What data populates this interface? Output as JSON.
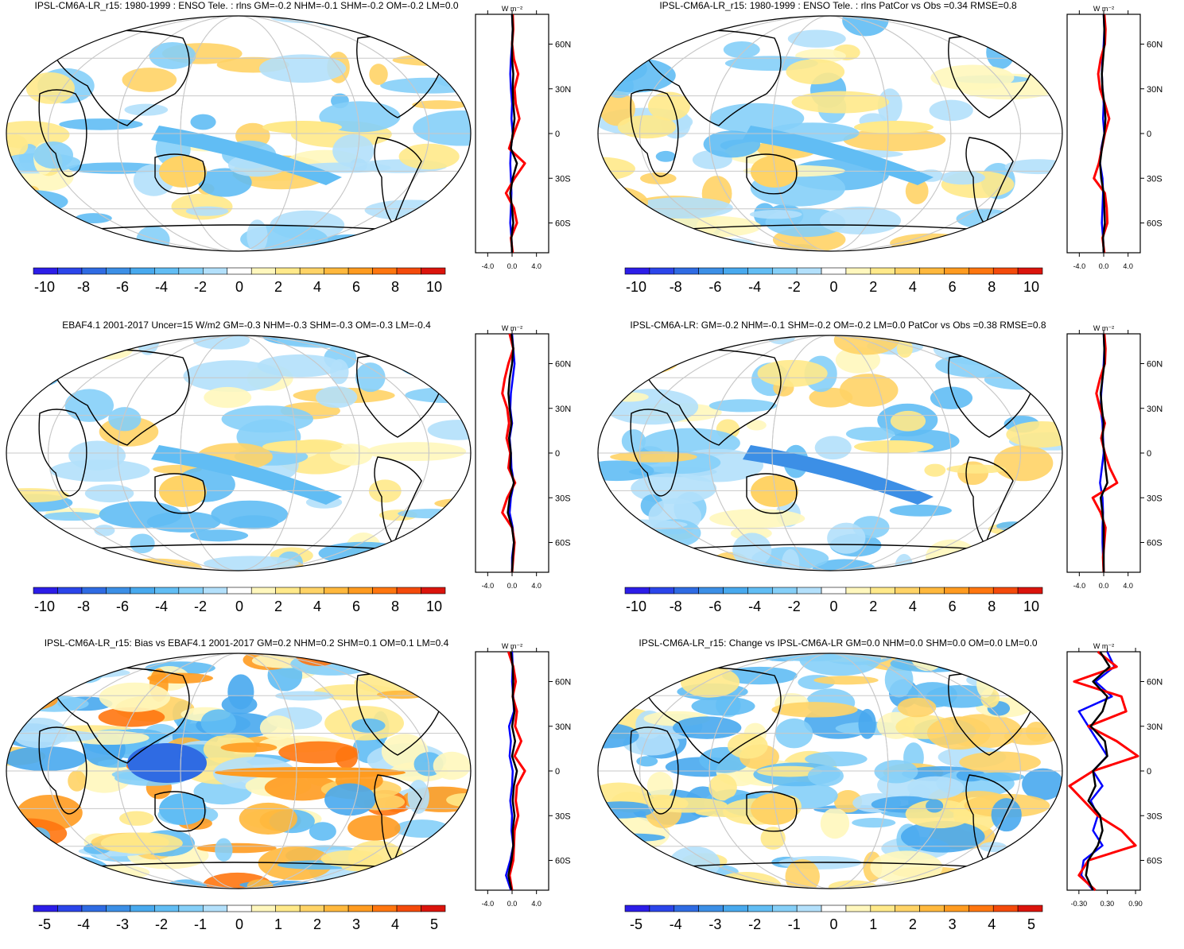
{
  "colors": {
    "scale": [
      "#2c1de8",
      "#2b45ea",
      "#2f6be3",
      "#3c8fe6",
      "#48a9ee",
      "#61bdf4",
      "#85cff8",
      "#b3e0fb",
      "#ffffff",
      "#fff7bd",
      "#ffe98a",
      "#ffd366",
      "#ffb83d",
      "#ff9b20",
      "#ff760f",
      "#f44a0b",
      "#db140c"
    ],
    "land": "#000000",
    "grid": "#c8c8c8",
    "obs_line": "#0000ff",
    "model_line": "#ff0000",
    "mean_line": "#000000"
  },
  "chart_data": [
    {
      "id": "p1",
      "type": "map",
      "title": "IPSL-CM6A-LR_r15: 1980-1999 : ENSO Tele. : rlns GM=-0.2 NHM=-0.1 SHM=-0.2 OM=-0.2 LM=0.0",
      "colorbar_labels": [
        "-10",
        "-8",
        "-6",
        "-4",
        "-2",
        "0",
        "2",
        "4",
        "6",
        "8",
        "10"
      ],
      "zonal_units": "W m⁻²",
      "zonal_xticks": [
        "-4.0",
        "0.0",
        "4.0"
      ],
      "zonal_xlim": [
        -6,
        6
      ],
      "zonal_lat_labels": [
        "60N",
        "30N",
        "0",
        "30S",
        "60S"
      ],
      "zonal_series": {
        "lat": [
          80,
          70,
          60,
          50,
          40,
          30,
          20,
          10,
          0,
          -10,
          -20,
          -30,
          -40,
          -50,
          -60,
          -70,
          -80
        ],
        "obs": [
          0.0,
          0.1,
          0.0,
          -0.2,
          -0.3,
          -0.2,
          0.0,
          -0.1,
          0.1,
          -0.2,
          -0.3,
          -0.2,
          -0.1,
          -0.2,
          -0.3,
          -0.1,
          0.0
        ],
        "model": [
          0.1,
          0.2,
          0.0,
          0.3,
          1.0,
          0.4,
          0.6,
          1.2,
          0.3,
          -0.5,
          2.1,
          0.4,
          -1.0,
          0.3,
          0.8,
          -0.2,
          0.1
        ],
        "mean": [
          0.0,
          0.1,
          0.0,
          0.0,
          0.2,
          0.1,
          0.2,
          0.4,
          0.1,
          -0.2,
          0.8,
          0.1,
          -0.3,
          0.0,
          0.2,
          -0.1,
          0.0
        ]
      }
    },
    {
      "id": "p2",
      "type": "map",
      "title": "IPSL-CM6A-LR_r15: 1980-1999 : ENSO Tele. : rlns PatCor vs Obs =0.34 RMSE=0.8",
      "colorbar_labels": [
        "-10",
        "-8",
        "-6",
        "-4",
        "-2",
        "0",
        "2",
        "4",
        "6",
        "8",
        "10"
      ],
      "zonal_units": "W m⁻²",
      "zonal_xticks": [
        "-4.0",
        "0.0",
        "4.0"
      ],
      "zonal_xlim": [
        -6,
        6
      ],
      "zonal_lat_labels": [
        "60N",
        "30N",
        "0",
        "30S",
        "60S"
      ],
      "zonal_series": {
        "lat": [
          80,
          70,
          60,
          50,
          40,
          30,
          20,
          10,
          0,
          -10,
          -20,
          -30,
          -40,
          -50,
          -60,
          -70,
          -80
        ],
        "obs": [
          0.0,
          0.1,
          0.0,
          -0.2,
          -0.3,
          -0.2,
          0.0,
          -0.1,
          0.1,
          -0.4,
          -0.6,
          -0.2,
          -0.1,
          -0.2,
          -0.3,
          -0.1,
          0.0
        ],
        "model": [
          0.1,
          0.3,
          0.2,
          -0.5,
          -0.9,
          -0.6,
          0.2,
          0.9,
          0.2,
          -0.3,
          -0.8,
          -1.6,
          0.2,
          0.5,
          0.6,
          -0.2,
          0.1
        ],
        "mean": [
          0.0,
          0.1,
          0.1,
          -0.1,
          -0.3,
          -0.2,
          0.1,
          0.3,
          0.1,
          -0.3,
          -0.6,
          -0.4,
          0.0,
          0.1,
          0.2,
          -0.1,
          0.0
        ]
      }
    },
    {
      "id": "p3",
      "type": "map",
      "title": "EBAF4.1 2001-2017 Uncer=15 W/m2 GM=-0.3 NHM=-0.3 SHM=-0.3 OM=-0.3 LM=-0.4",
      "colorbar_labels": [
        "-10",
        "-8",
        "-6",
        "-4",
        "-2",
        "0",
        "2",
        "4",
        "6",
        "8",
        "10"
      ],
      "zonal_units": "W m⁻²",
      "zonal_xticks": [
        "-4.0",
        "0.0",
        "4.0"
      ],
      "zonal_xlim": [
        -6,
        6
      ],
      "zonal_lat_labels": [
        "60N",
        "30N",
        "0",
        "30S",
        "60S"
      ],
      "zonal_series": {
        "lat": [
          80,
          70,
          60,
          50,
          40,
          30,
          20,
          10,
          0,
          -10,
          -20,
          -30,
          -40,
          -50,
          -60,
          -70,
          -80
        ],
        "obs": [
          0.0,
          0.2,
          0.4,
          0.1,
          -0.2,
          -0.3,
          0.0,
          -0.4,
          -0.2,
          -0.1,
          0.3,
          -0.2,
          -0.4,
          0.1,
          0.3,
          0.0,
          0.0
        ],
        "model": [
          -0.4,
          0.2,
          -0.6,
          -1.2,
          -1.6,
          -0.8,
          -0.5,
          -0.9,
          -0.3,
          -0.6,
          0.5,
          -0.8,
          -1.6,
          0.0,
          0.4,
          0.2,
          0.0
        ],
        "mean": [
          -0.1,
          0.2,
          0.0,
          -0.4,
          -0.6,
          -0.4,
          -0.1,
          -0.5,
          -0.2,
          -0.3,
          0.3,
          -0.4,
          -0.7,
          0.0,
          0.3,
          0.1,
          0.0
        ]
      }
    },
    {
      "id": "p4",
      "type": "map",
      "title": "IPSL-CM6A-LR: GM=-0.2 NHM=-0.1 SHM=-0.2 OM=-0.2 LM=0.0 PatCor vs Obs =0.38 RMSE=0.8",
      "colorbar_labels": [
        "-10",
        "-8",
        "-6",
        "-4",
        "-2",
        "0",
        "2",
        "4",
        "6",
        "8",
        "10"
      ],
      "zonal_units": "W m⁻²",
      "zonal_xticks": [
        "-4.0",
        "0.0",
        "4.0"
      ],
      "zonal_xlim": [
        -6,
        6
      ],
      "zonal_lat_labels": [
        "60N",
        "30N",
        "0",
        "30S",
        "60S"
      ],
      "zonal_series": {
        "lat": [
          80,
          70,
          60,
          50,
          40,
          30,
          20,
          10,
          0,
          -10,
          -20,
          -30,
          -40,
          -50,
          -60,
          -70,
          -80
        ],
        "obs": [
          0.0,
          0.1,
          0.0,
          -0.2,
          -0.4,
          -0.5,
          -0.2,
          -0.1,
          0.0,
          -0.3,
          -0.6,
          -0.2,
          -0.1,
          -0.2,
          -0.2,
          -0.1,
          0.0
        ],
        "model": [
          0.1,
          0.3,
          0.2,
          -0.6,
          -1.2,
          -0.6,
          0.2,
          -0.4,
          0.2,
          1.0,
          2.2,
          -1.8,
          -0.5,
          0.3,
          0.1,
          -0.1,
          0.0
        ],
        "mean": [
          0.0,
          0.1,
          0.1,
          -0.2,
          -0.5,
          -0.3,
          0.0,
          -0.2,
          0.1,
          0.3,
          0.6,
          -0.5,
          -0.2,
          0.0,
          0.0,
          0.0,
          0.0
        ]
      }
    },
    {
      "id": "p5",
      "type": "map",
      "title": "IPSL-CM6A-LR_r15: Bias vs EBAF4.1 2001-2017 GM=0.2 NHM=0.2 SHM=0.1 OM=0.1 LM=0.4",
      "colorbar_labels": [
        "-5",
        "-4",
        "-3",
        "-2",
        "-1",
        "0",
        "1",
        "2",
        "3",
        "4",
        "5"
      ],
      "zonal_units": "W m⁻²",
      "zonal_xticks": [
        "-4.0",
        "0.0",
        "4.0"
      ],
      "zonal_xlim": [
        -6,
        6
      ],
      "zonal_lat_labels": [
        "60N",
        "30N",
        "0",
        "30S",
        "60S"
      ],
      "zonal_series": {
        "lat": [
          80,
          70,
          60,
          50,
          40,
          30,
          20,
          10,
          0,
          -10,
          -20,
          -30,
          -40,
          -50,
          -60,
          -70,
          -80
        ],
        "obs": [
          0.0,
          0.1,
          0.0,
          0.2,
          0.3,
          -0.5,
          -0.2,
          -0.4,
          0.1,
          0.0,
          -0.3,
          0.0,
          -0.1,
          0.2,
          -0.3,
          -1.0,
          -0.2
        ],
        "model": [
          -0.6,
          0.2,
          0.6,
          0.1,
          0.8,
          0.5,
          1.5,
          0.4,
          2.1,
          0.8,
          0.6,
          1.0,
          0.4,
          0.3,
          0.2,
          -0.4,
          0.0
        ],
        "mean": [
          -0.2,
          0.1,
          0.2,
          0.1,
          0.4,
          0.0,
          0.5,
          0.0,
          0.8,
          0.3,
          0.1,
          0.4,
          0.1,
          0.2,
          -0.1,
          -0.6,
          -0.1
        ]
      }
    },
    {
      "id": "p6",
      "type": "map",
      "title": "IPSL-CM6A-LR_r15: Change vs IPSL-CM6A-LR GM=0.0 NHM=0.0 SHM=0.0 OM=0.0 LM=0.0",
      "colorbar_labels": [
        "-5",
        "-4",
        "-3",
        "-2",
        "-1",
        "0",
        "1",
        "2",
        "3",
        "4",
        "5"
      ],
      "zonal_units": "W m⁻²",
      "zonal_xticks": [
        "-0.30",
        "0.30",
        "0.90"
      ],
      "zonal_xlim": [
        -0.55,
        1.0
      ],
      "zonal_lat_labels": [
        "60N",
        "30N",
        "0",
        "30S",
        "60S"
      ],
      "zonal_series": {
        "lat": [
          80,
          70,
          60,
          50,
          40,
          30,
          20,
          10,
          0,
          -10,
          -20,
          -30,
          -40,
          -50,
          -60,
          -70,
          -80
        ],
        "obs": [
          0.3,
          0.45,
          0.05,
          0.4,
          -0.3,
          -0.1,
          0.1,
          0.3,
          0.0,
          0.2,
          -0.05,
          0.1,
          0.0,
          0.2,
          -0.2,
          -0.25,
          0.0
        ],
        "model": [
          0.1,
          0.5,
          -0.4,
          0.6,
          0.7,
          -0.1,
          0.5,
          0.95,
          0.0,
          -0.5,
          -0.2,
          0.1,
          0.6,
          0.9,
          -0.1,
          -0.3,
          0.05
        ],
        "mean": [
          0.15,
          0.35,
          0.0,
          0.3,
          0.2,
          -0.05,
          0.25,
          0.3,
          0.0,
          0.05,
          -0.1,
          0.15,
          0.2,
          0.1,
          -0.1,
          -0.15,
          0.0
        ]
      }
    }
  ]
}
